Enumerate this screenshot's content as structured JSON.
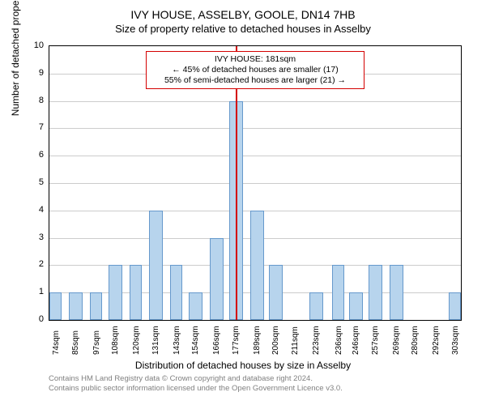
{
  "title_main": "IVY HOUSE, ASSELBY, GOOLE, DN14 7HB",
  "title_sub": "Size of property relative to detached houses in Asselby",
  "yaxis_label": "Number of detached properties",
  "xaxis_label": "Distribution of detached houses by size in Asselby",
  "chart": {
    "type": "histogram",
    "background_color": "#ffffff",
    "grid_color": "#cccccc",
    "bar_fill": "#b7d4ed",
    "bar_stroke": "#6699cc",
    "reference_line_color": "#d40000",
    "ylim": [
      0,
      10
    ],
    "ytick_step": 1,
    "x_range": [
      74,
      310
    ],
    "xtick_labels": [
      "74sqm",
      "85sqm",
      "97sqm",
      "108sqm",
      "120sqm",
      "131sqm",
      "143sqm",
      "154sqm",
      "166sqm",
      "177sqm",
      "189sqm",
      "200sqm",
      "211sqm",
      "223sqm",
      "236sqm",
      "246sqm",
      "257sqm",
      "269sqm",
      "280sqm",
      "292sqm",
      "303sqm"
    ],
    "xtick_positions": [
      74,
      85,
      97,
      108,
      120,
      131,
      143,
      154,
      166,
      177,
      189,
      200,
      211,
      223,
      236,
      246,
      257,
      269,
      280,
      292,
      303
    ],
    "bars": [
      {
        "x0": 74,
        "x1": 81,
        "count": 1
      },
      {
        "x0": 85,
        "x1": 93,
        "count": 1
      },
      {
        "x0": 97,
        "x1": 104,
        "count": 1
      },
      {
        "x0": 108,
        "x1": 116,
        "count": 2
      },
      {
        "x0": 120,
        "x1": 127,
        "count": 2
      },
      {
        "x0": 131,
        "x1": 139,
        "count": 4
      },
      {
        "x0": 143,
        "x1": 150,
        "count": 2
      },
      {
        "x0": 154,
        "x1": 162,
        "count": 1
      },
      {
        "x0": 166,
        "x1": 174,
        "count": 3
      },
      {
        "x0": 177,
        "x1": 185,
        "count": 8
      },
      {
        "x0": 189,
        "x1": 197,
        "count": 4
      },
      {
        "x0": 200,
        "x1": 208,
        "count": 2
      },
      {
        "x0": 211,
        "x1": 220,
        "count": 0
      },
      {
        "x0": 223,
        "x1": 231,
        "count": 1
      },
      {
        "x0": 236,
        "x1": 243,
        "count": 2
      },
      {
        "x0": 246,
        "x1": 254,
        "count": 1
      },
      {
        "x0": 257,
        "x1": 265,
        "count": 2
      },
      {
        "x0": 269,
        "x1": 277,
        "count": 2
      },
      {
        "x0": 280,
        "x1": 288,
        "count": 0
      },
      {
        "x0": 292,
        "x1": 299,
        "count": 0
      },
      {
        "x0": 303,
        "x1": 310,
        "count": 1
      }
    ],
    "reference_value": 181,
    "annotation": {
      "line1": "IVY HOUSE: 181sqm",
      "line2": "← 45% of detached houses are smaller (17)",
      "line3": "55% of semi-detached houses are larger (21) →"
    }
  },
  "footer": {
    "line1": "Contains HM Land Registry data © Crown copyright and database right 2024.",
    "line2": "Contains public sector information licensed under the Open Government Licence v3.0."
  }
}
